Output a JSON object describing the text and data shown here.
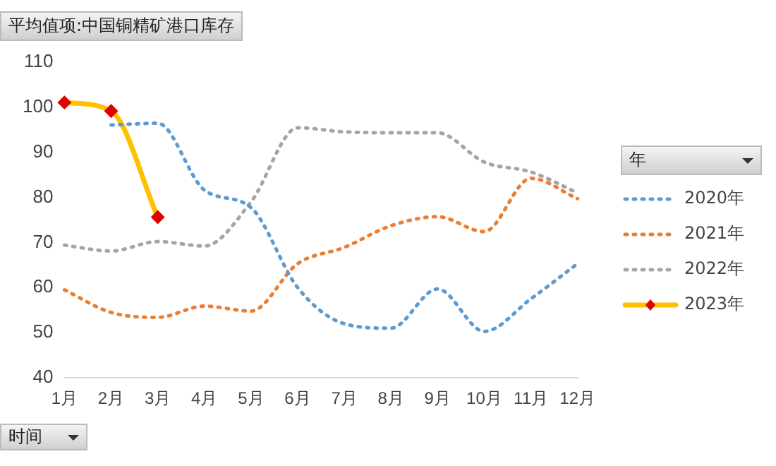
{
  "chart_data": {
    "type": "line",
    "title": "平均值项:中国铜精矿港口库存",
    "xlabel": "时间",
    "legend_title": "年",
    "legend": "right",
    "categories": [
      "1月",
      "2月",
      "3月",
      "4月",
      "5月",
      "6月",
      "7月",
      "8月",
      "9月",
      "10月",
      "11月",
      "12月"
    ],
    "ylim": [
      40,
      110
    ],
    "yticks": [
      40,
      50,
      60,
      70,
      80,
      90,
      100,
      110
    ],
    "series": [
      {
        "name": "2020年",
        "color": "#5b9bd5",
        "line_style": "dotted",
        "marker": "none",
        "values": [
          null,
          96,
          96.4,
          81.6,
          77.7,
          60,
          52,
          51,
          59.7,
          50.3,
          57.5,
          65.3
        ]
      },
      {
        "name": "2021年",
        "color": "#ed7d31",
        "line_style": "dotted",
        "marker": "none",
        "values": [
          59.5,
          54.5,
          53.4,
          55.9,
          54.8,
          65.3,
          68.9,
          73.7,
          75.7,
          72.4,
          84.2,
          79.7
        ]
      },
      {
        "name": "2022年",
        "color": "#a5a5a5",
        "line_style": "dotted",
        "marker": "none",
        "values": [
          69.4,
          68.1,
          70.2,
          69.2,
          79,
          95.4,
          94.5,
          94.3,
          94.3,
          87.8,
          85.6,
          81
        ]
      },
      {
        "name": "2023年",
        "color": "#ffc000",
        "line_style": "solid",
        "marker": "diamond",
        "values": [
          101,
          99.1,
          75.6,
          null,
          null,
          null,
          null,
          null,
          null,
          null,
          null,
          null
        ]
      }
    ]
  }
}
